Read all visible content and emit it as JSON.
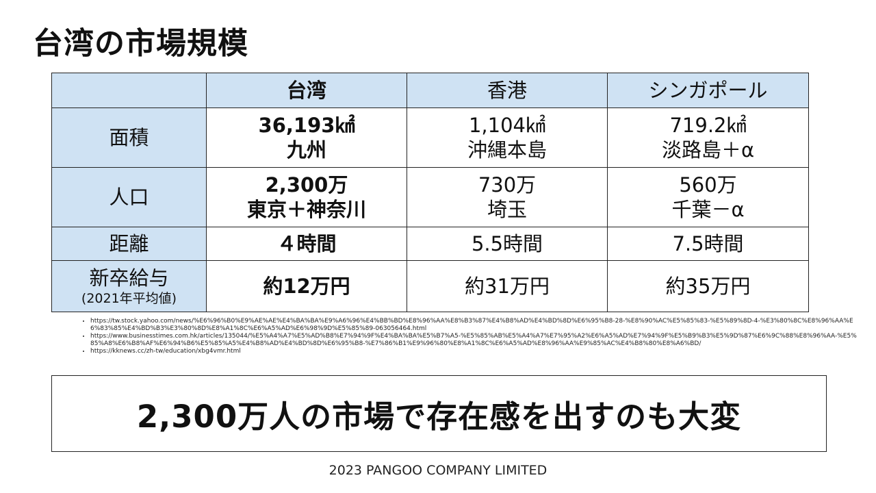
{
  "title": "台湾の市場規模",
  "table": {
    "columns": [
      "",
      "台湾",
      "香港",
      "シンガポール"
    ],
    "rows": {
      "area": {
        "label": "面積",
        "taiwan": [
          "36,193㎢",
          "九州"
        ],
        "hongkong": [
          "1,104㎢",
          "沖縄本島"
        ],
        "singapore": [
          "719.2㎢",
          "淡路島＋α"
        ]
      },
      "population": {
        "label": "人口",
        "taiwan": [
          "2,300万",
          "東京＋神奈川"
        ],
        "hongkong": [
          "730万",
          "埼玉"
        ],
        "singapore": [
          "560万",
          "千葉－α"
        ]
      },
      "distance": {
        "label": "距離",
        "taiwan": "４時間",
        "hongkong": "5.5時間",
        "singapore": "7.5時間"
      },
      "salary": {
        "label": "新卒給与",
        "sublabel": "(2021年平均値)",
        "taiwan": "約12万円",
        "hongkong": "約31万円",
        "singapore": "約35万円"
      }
    }
  },
  "references": [
    "https://tw.stock.yahoo.com/news/%E6%96%B0%E9%AE%AE%E4%BA%BA%E9%A6%96%E4%BB%BD%E8%96%AA%E8%B3%87%E4%B8%AD%E4%BD%8D%E6%95%B8-28-%E8%90%AC%E5%85%83-%E5%89%8D-4-%E3%80%8C%E8%96%AA%E6%83%85%E4%BD%B3%E3%80%8D%E8%A1%8C%E6%A5%AD%E6%98%9D%E5%85%89-063056464.html",
    "https://www.businesstimes.com.hk/articles/135044/%E5%A4%A7%E5%AD%B8%E7%94%9F%E4%BA%BA%E5%B7%A5-%E5%85%AB%E5%A4%A7%E7%95%A2%E6%A5%AD%E7%94%9F%E5%B9%B3%E5%9D%87%E6%9C%88%E8%96%AA-%E5%85%A8%E6%B8%AF%E6%94%B6%E5%85%A5%E4%B8%AD%E4%BD%8D%E6%95%B8-%E7%86%B1%E9%96%80%E8%A1%8C%E6%A5%AD%E8%96%AA%E9%85%AC%E4%B8%80%E8%A6%BD/",
    "https://kknews.cc/zh-tw/education/xbg4vmr.html"
  ],
  "callout": "2,300万人の市場で存在感を出すのも大変",
  "footer": "2023 PANGOO COMPANY LIMITED"
}
